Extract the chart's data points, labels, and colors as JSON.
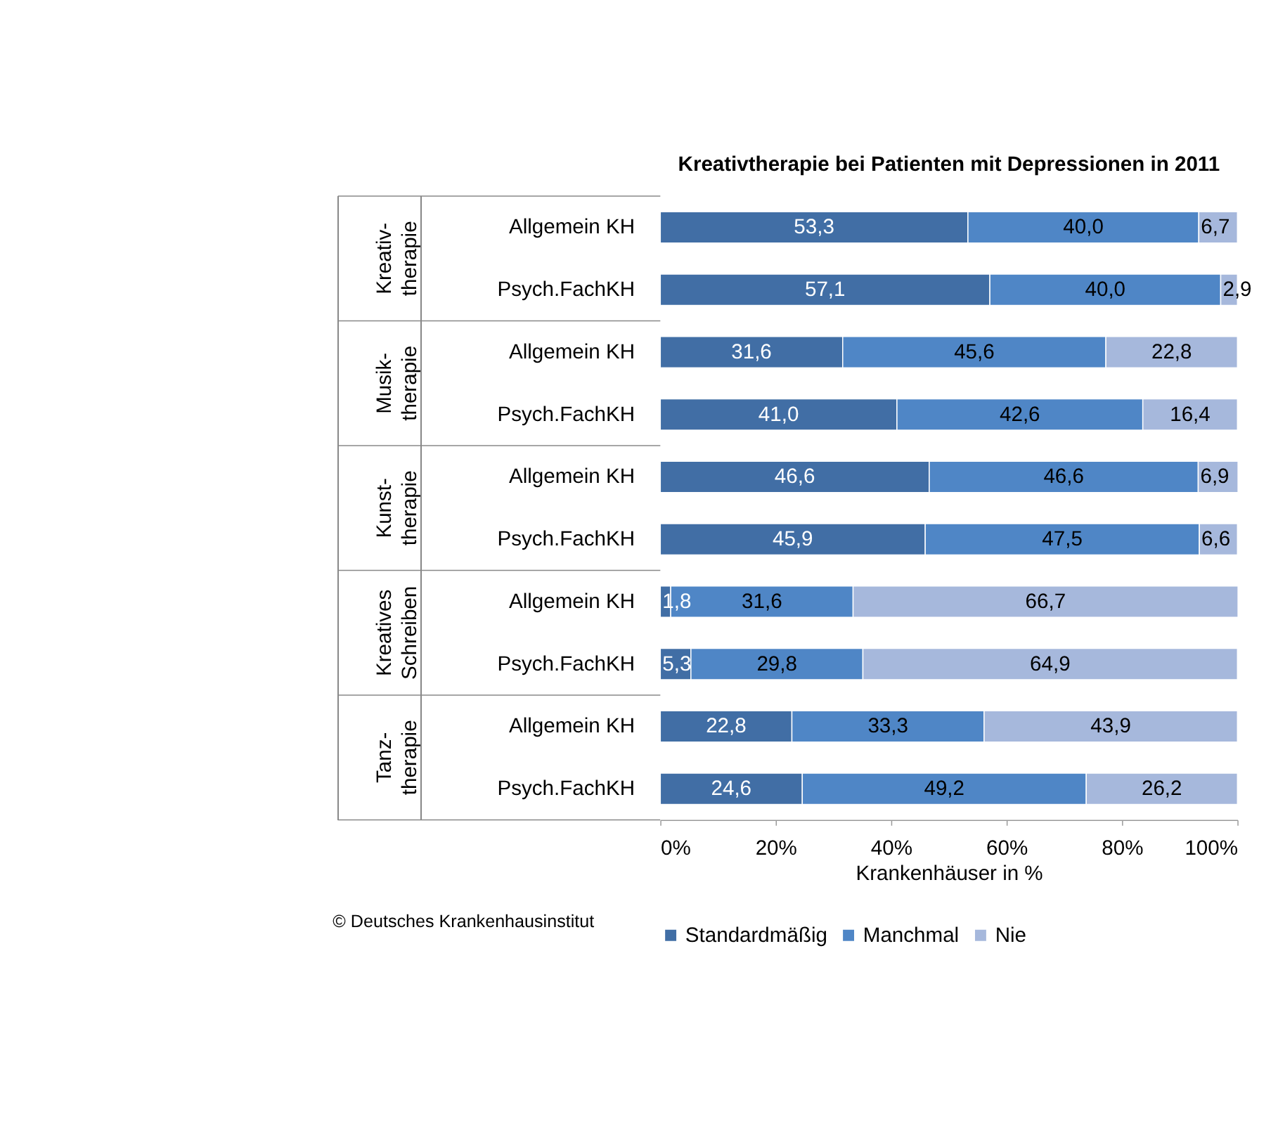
{
  "chart_data": {
    "type": "bar",
    "orientation": "horizontal",
    "stacked": true,
    "title": "Kreativtherapie bei Patienten mit Depressionen in 2011",
    "categories": [
      "Allgemein KH",
      "Psych.FachKH",
      "Allgemein KH",
      "Psych.FachKH",
      "Allgemein KH",
      "Psych.FachKH",
      "Allgemein KH",
      "Psych.FachKH",
      "Allgemein KH",
      "Psych.FachKH"
    ],
    "series": [
      {
        "name": "Standardmäßig",
        "color": "#416ea5",
        "values": [
          53.3,
          57.1,
          31.6,
          41.0,
          46.6,
          45.9,
          1.8,
          5.3,
          22.8,
          24.6
        ],
        "value_labels": [
          "53,3",
          "57,1",
          "31,6",
          "41,0",
          "46,6",
          "45,9",
          "1,8",
          "5,3",
          "22,8",
          "24,6"
        ]
      },
      {
        "name": "Manchmal",
        "color": "#4f86c6",
        "values": [
          40.0,
          40.0,
          45.6,
          42.6,
          46.6,
          47.5,
          31.6,
          29.8,
          33.3,
          49.2
        ],
        "value_labels": [
          "40,0",
          "40,0",
          "45,6",
          "42,6",
          "46,6",
          "47,5",
          "31,6",
          "29,8",
          "33,3",
          "49,2"
        ]
      },
      {
        "name": "Nie",
        "color": "#a6b8dc",
        "values": [
          6.7,
          2.9,
          22.8,
          16.4,
          6.9,
          6.6,
          66.7,
          64.9,
          43.9,
          26.2
        ],
        "value_labels": [
          "6,7",
          "2,9",
          "22,8",
          "16,4",
          "6,9",
          "6,6",
          "66,7",
          "64,9",
          "43,9",
          "26,2"
        ]
      }
    ],
    "xlabel": "Krankenhäuser in %",
    "xlim": [
      0,
      100
    ],
    "xticks": [
      {
        "value": 0,
        "label": "0%"
      },
      {
        "value": 20,
        "label": "20%"
      },
      {
        "value": 40,
        "label": "40%"
      },
      {
        "value": 60,
        "label": "60%"
      },
      {
        "value": 80,
        "label": "80%"
      },
      {
        "value": 100,
        "label": "100%"
      }
    ],
    "annotations": [
      "Kreativ-\ntherapie",
      "Musik-\ntherapie",
      "Kunst-\ntherapie",
      "Kreatives\nSchreiben",
      "Tanz-\ntherapie",
      "© Deutsches Krankenhausinstitut"
    ],
    "grid": false,
    "legend": "bottom"
  }
}
